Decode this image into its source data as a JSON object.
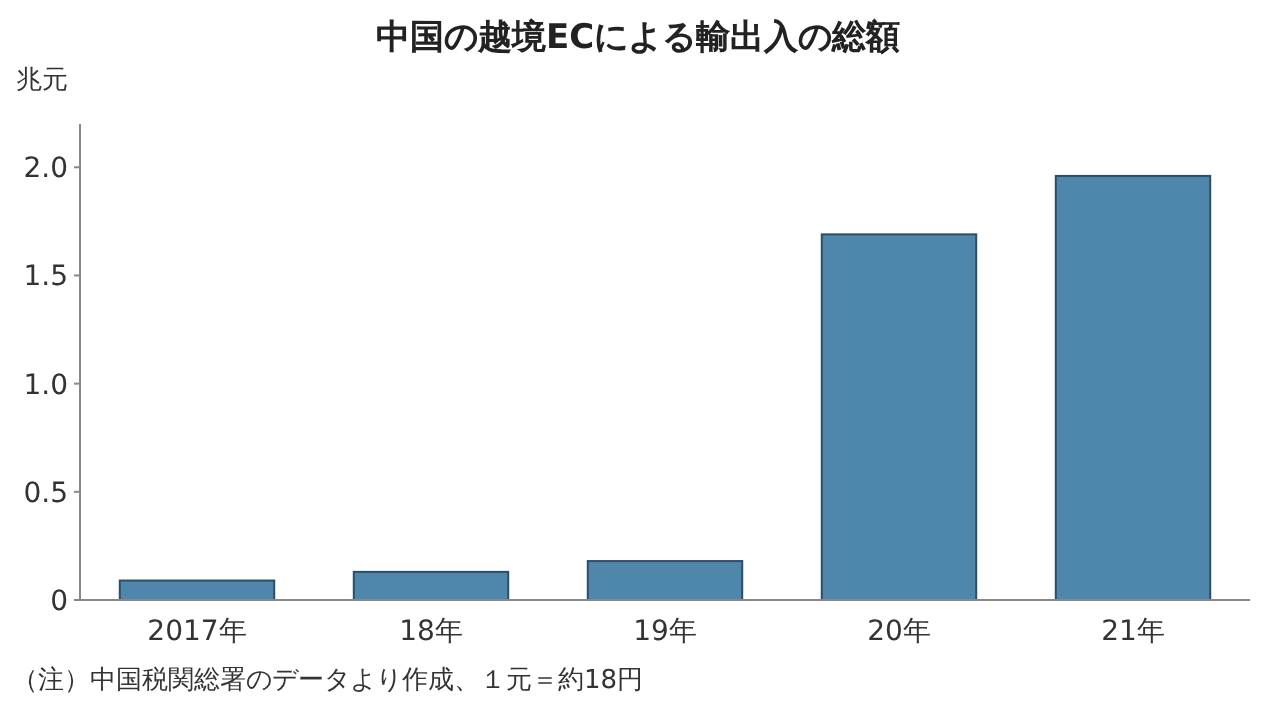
{
  "chart_data": {
    "type": "bar",
    "title": "中国の越境ECによる輸出入の総額",
    "ylabel": "兆元",
    "categories": [
      "2017年",
      "18年",
      "19年",
      "20年",
      "21年"
    ],
    "values": [
      0.09,
      0.13,
      0.18,
      1.69,
      1.96
    ],
    "color": "#4f86ab",
    "ylim": [
      0,
      2.2
    ],
    "yticks": [
      0,
      {
        "value": 0.5,
        "label": "0.5"
      },
      {
        "value": 1,
        "label": "1.0"
      },
      {
        "value": 1.5,
        "label": "1.5"
      },
      {
        "value": 2,
        "label": "2.0"
      }
    ],
    "grid": false,
    "annotations": [
      "（注）中国税関総署のデータより作成、１元＝約18円"
    ]
  }
}
